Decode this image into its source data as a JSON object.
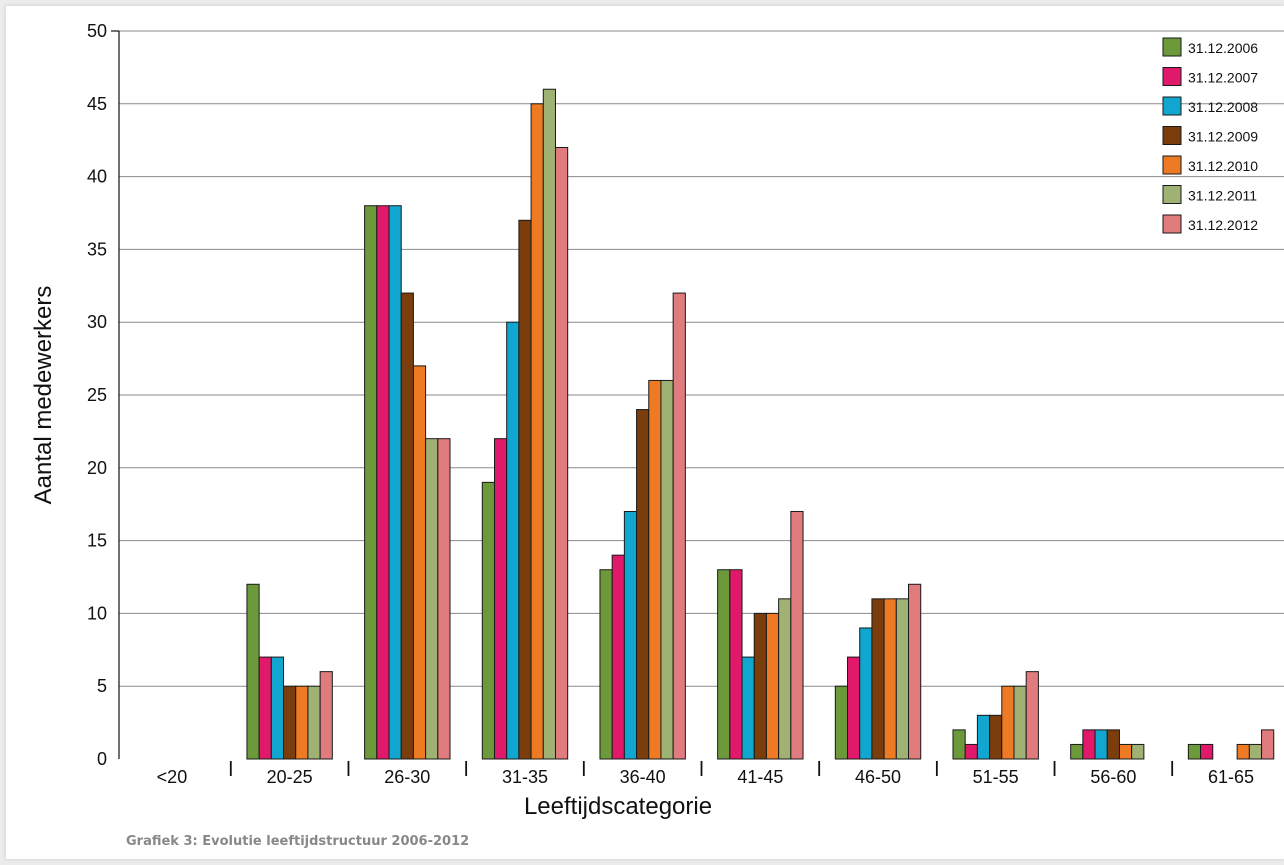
{
  "caption": "Grafiek 3: Evolutie leeftijdstructuur 2006-2012",
  "chart_data": {
    "type": "bar",
    "title": "",
    "xlabel": "Leeftijdscategorie",
    "ylabel": "Aantal medewerkers",
    "ylim": [
      0,
      50
    ],
    "yticks": [
      0,
      5,
      10,
      15,
      20,
      25,
      30,
      35,
      40,
      45,
      50
    ],
    "grid": true,
    "legend_position": "top-right",
    "categories": [
      "<20",
      "20-25",
      "26-30",
      "31-35",
      "36-40",
      "41-45",
      "46-50",
      "51-55",
      "56-60",
      "61-65"
    ],
    "series": [
      {
        "name": "31.12.2006",
        "color": "#6c9a3a",
        "values": [
          0,
          12,
          38,
          19,
          13,
          13,
          5,
          2,
          1,
          1
        ]
      },
      {
        "name": "31.12.2007",
        "color": "#e0196a",
        "values": [
          0,
          7,
          38,
          22,
          14,
          13,
          7,
          1,
          2,
          1
        ]
      },
      {
        "name": "31.12.2008",
        "color": "#11a6cf",
        "values": [
          0,
          7,
          38,
          30,
          17,
          7,
          9,
          3,
          2,
          0
        ]
      },
      {
        "name": "31.12.2009",
        "color": "#7a3d0b",
        "values": [
          0,
          5,
          32,
          37,
          24,
          10,
          11,
          3,
          2,
          0
        ]
      },
      {
        "name": "31.12.2010",
        "color": "#ee7a24",
        "values": [
          0,
          5,
          27,
          45,
          26,
          10,
          11,
          5,
          1,
          1
        ]
      },
      {
        "name": "31.12.2011",
        "color": "#9fb274",
        "values": [
          0,
          5,
          22,
          46,
          26,
          11,
          11,
          5,
          1,
          1
        ]
      },
      {
        "name": "31.12.2012",
        "color": "#e07b7e",
        "values": [
          0,
          6,
          22,
          42,
          32,
          17,
          12,
          6,
          0,
          2
        ]
      }
    ]
  }
}
